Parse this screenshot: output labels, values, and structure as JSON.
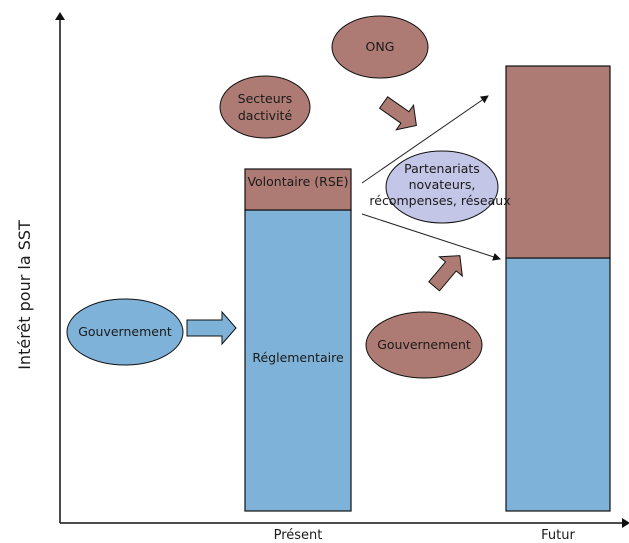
{
  "axes": {
    "y_label": "Intérêt pour la SST",
    "x_ticks": [
      "Présent",
      "Futur"
    ]
  },
  "bars": {
    "present": {
      "segments": [
        {
          "label": "Réglementaire",
          "color": "#7fb2d9"
        },
        {
          "label": "Volontaire (RSE)",
          "color": "#ad7b73"
        }
      ]
    },
    "futur": {
      "segments": [
        {
          "label": "",
          "color": "#7fb2d9"
        },
        {
          "label": "",
          "color": "#ad7b73"
        }
      ]
    }
  },
  "ellipses": {
    "ong": {
      "label": "ONG",
      "color": "#ad7b73"
    },
    "secteurs": {
      "line1": "Secteurs",
      "line2": "dactivité",
      "color": "#ad7b73"
    },
    "partenariats": {
      "line1": "Partenariats",
      "line2": "novateurs,",
      "line3": "récompenses, réseaux",
      "color": "#c3c6e6"
    },
    "gouvernement_left": {
      "label": "Gouvernement",
      "color": "#7fb2d9"
    },
    "gouvernement_right": {
      "label": "Gouvernement",
      "color": "#ad7b73"
    }
  },
  "colors": {
    "blue": "#7fb2d9",
    "brown": "#ad7b73",
    "lavender": "#c3c6e6",
    "stroke": "#111111"
  }
}
